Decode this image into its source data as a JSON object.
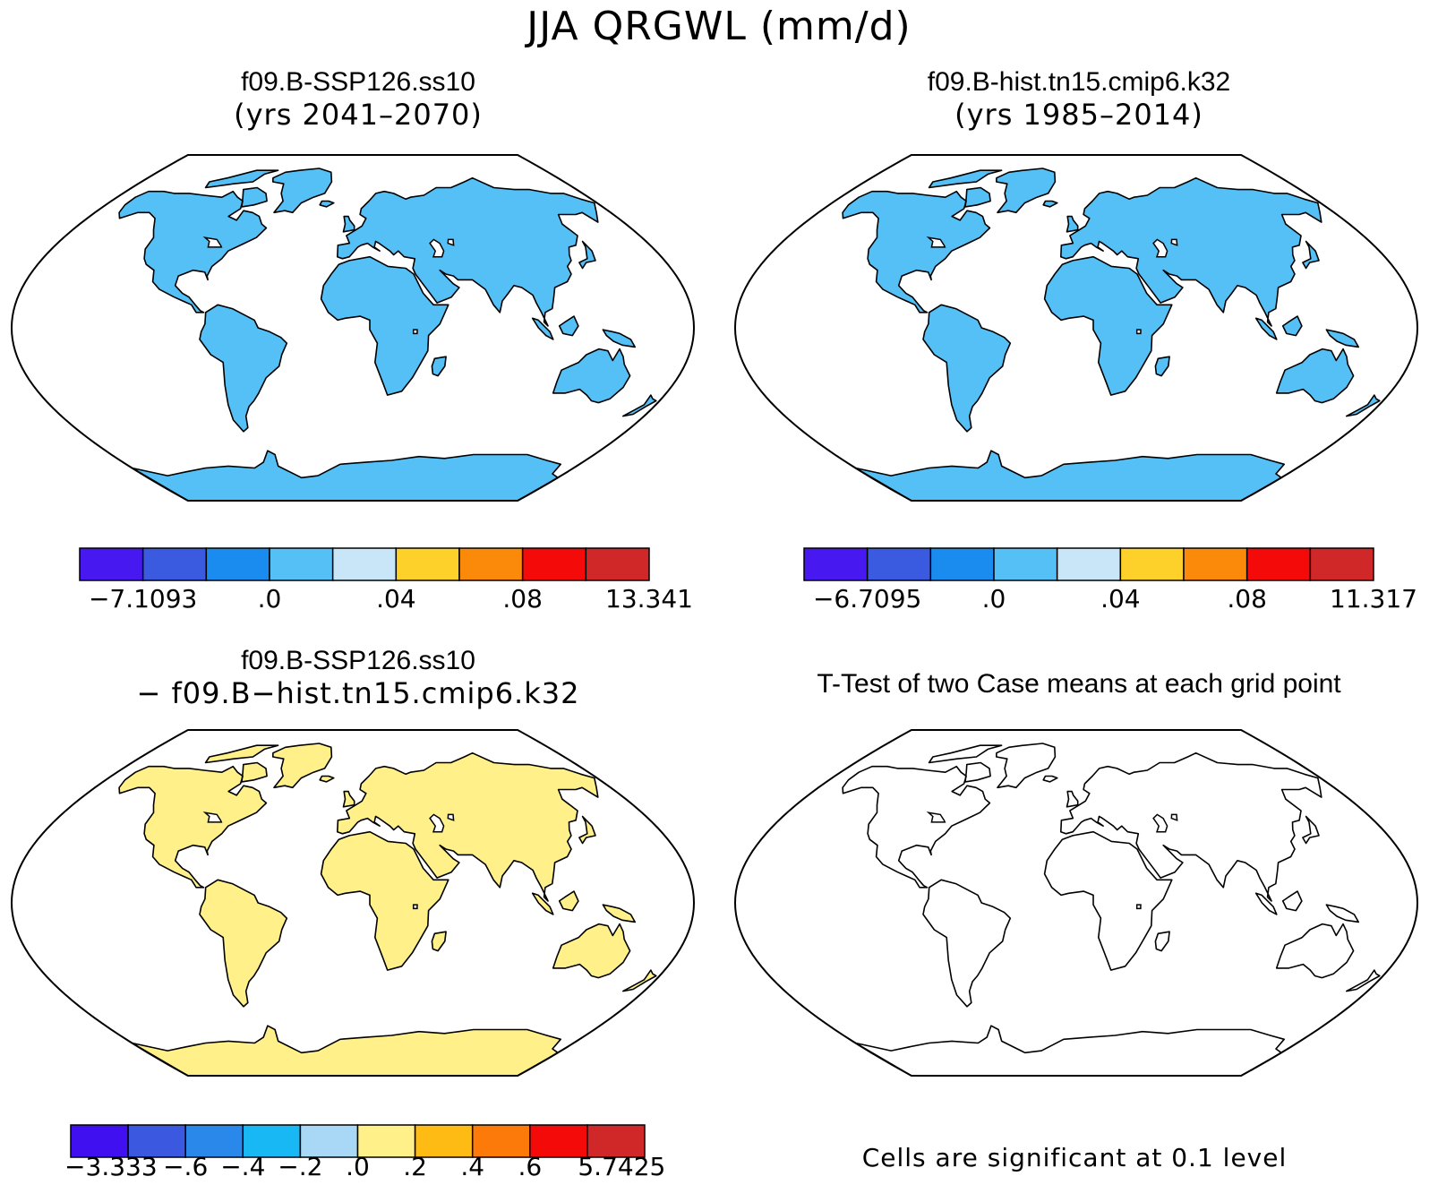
{
  "title": "JJA QRGWL (mm/d)",
  "panels": {
    "ssp": {
      "title_line1": "f09.B-SSP126.ss10",
      "title_line2": "(yrs 2041–2070)",
      "colorbar": {
        "colors": [
          "#4818f0",
          "#3a5ae0",
          "#1a8cf0",
          "#55c0f5",
          "#c8e6f8",
          "#fdd02a",
          "#fb8a0a",
          "#f50a0a",
          "#d02828"
        ],
        "labels": [
          {
            "text": "−7.1093",
            "edge": 1
          },
          {
            "text": ".0",
            "edge": 3
          },
          {
            "text": ".04",
            "edge": 5
          },
          {
            "text": ".08",
            "edge": 7
          },
          {
            "text": "13.341",
            "edge": 9
          }
        ]
      }
    },
    "hist": {
      "title_line1": "f09.B-hist.tn15.cmip6.k32",
      "title_line2": "(yrs 1985–2014)",
      "colorbar": {
        "colors": [
          "#4818f0",
          "#3a5ae0",
          "#1a8cf0",
          "#55c0f5",
          "#c8e6f8",
          "#fdd02a",
          "#fb8a0a",
          "#f50a0a",
          "#d02828"
        ],
        "labels": [
          {
            "text": "−6.7095",
            "edge": 1
          },
          {
            "text": ".0",
            "edge": 3
          },
          {
            "text": ".04",
            "edge": 5
          },
          {
            "text": ".08",
            "edge": 7
          },
          {
            "text": "11.317",
            "edge": 9
          }
        ]
      }
    },
    "diff": {
      "title_line1": "f09.B-SSP126.ss10",
      "title_line2": "− f09.B−hist.tn15.cmip6.k32",
      "colorbar": {
        "colors": [
          "#4010f0",
          "#3a58e0",
          "#2a88ea",
          "#18b8f5",
          "#a8d8f5",
          "#fff08a",
          "#fdbb14",
          "#fb7a0a",
          "#f50a0a",
          "#d02828"
        ],
        "labels": [
          {
            "text": "−3.333",
            "edge": 0.7
          },
          {
            "text": "−.6",
            "edge": 2
          },
          {
            "text": "−.4",
            "edge": 3
          },
          {
            "text": "−.2",
            "edge": 4
          },
          {
            "text": ".0",
            "edge": 5
          },
          {
            "text": ".2",
            "edge": 6
          },
          {
            "text": ".4",
            "edge": 7
          },
          {
            "text": ".6",
            "edge": 8
          },
          {
            "text": "5.7425",
            "edge": 9.6
          }
        ]
      }
    },
    "ttest": {
      "title": "T-Test of two Case means at each grid point",
      "footnote": "Cells are significant at 0.1 level"
    }
  },
  "map_colors": {
    "ocean": "#ffffff",
    "coast": "#000000",
    "land_ssp": "#55c0f5",
    "land_hist": "#55c0f5",
    "land_diff": "#fff08a",
    "land_ttest": "#ffffff",
    "hot": "#d02828",
    "cold": "#4818f0",
    "diff_neg": "#a8d8f5",
    "sig": "#f50a0a"
  }
}
